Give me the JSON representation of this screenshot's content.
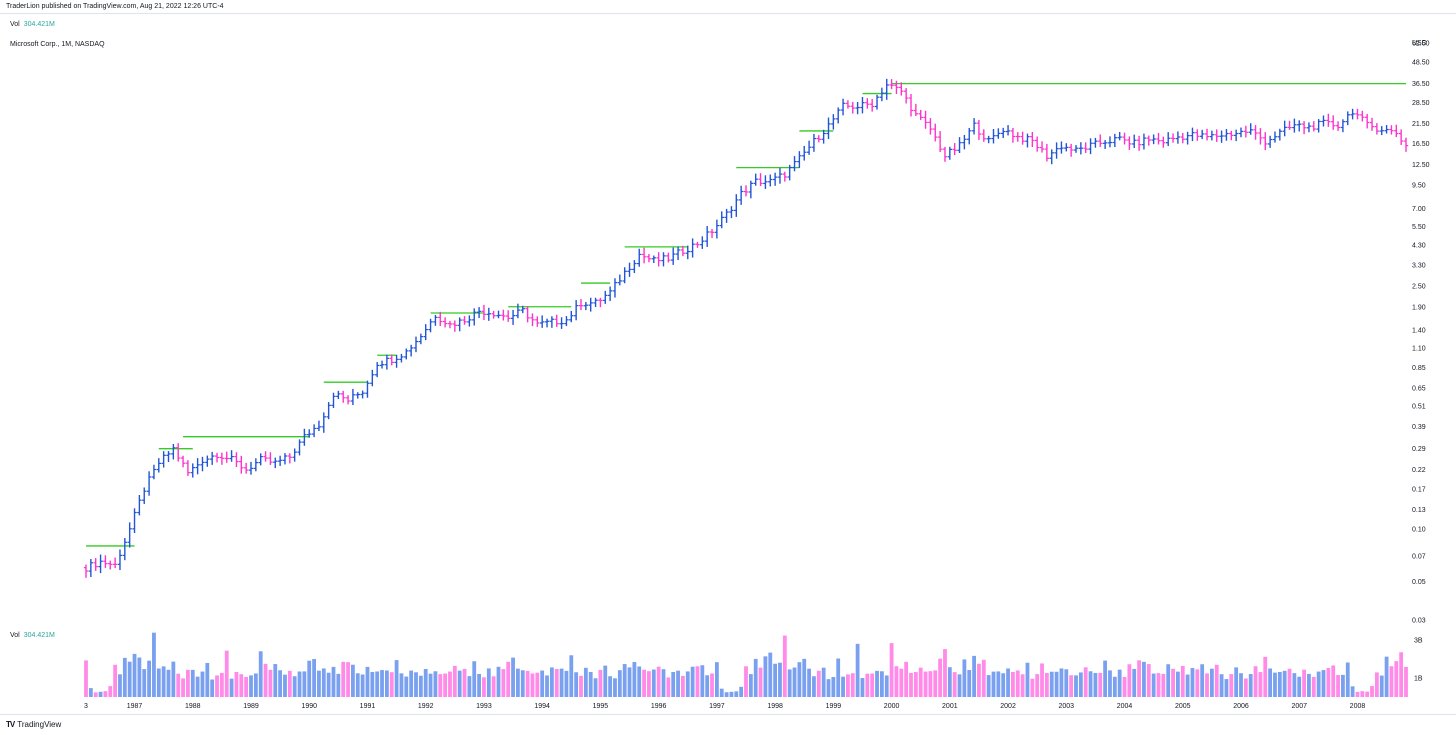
{
  "header": {
    "published_text": "TraderLion published on TradingView.com, Aug 21, 2022 12:26 UTC-4"
  },
  "legend": {
    "vol_label": "Vol",
    "vol_value": "304.421M",
    "series_title": "Microsoft Corp., 1M, NASDAQ"
  },
  "footer": {
    "brand": "TradingView",
    "logo_glyph": "TV"
  },
  "colors": {
    "up": "#2155d6",
    "down": "#ff33cc",
    "up_volume": "#7aa0f0",
    "down_volume": "#ff8ae8",
    "level_line": "#33cc22"
  },
  "chart_data": [
    {
      "type": "ohlc-bars",
      "title": "Microsoft Corp., 1M, NASDAQ",
      "currency": "USD",
      "scale": "log",
      "y_ticks": [
        "62.50",
        "48.50",
        "36.50",
        "28.50",
        "21.50",
        "16.50",
        "12.50",
        "9.50",
        "7.00",
        "5.50",
        "4.30",
        "3.30",
        "2.50",
        "1.90",
        "1.40",
        "1.10",
        "0.85",
        "0.65",
        "0.51",
        "0.39",
        "0.29",
        "0.22",
        "0.17",
        "0.13",
        "0.10",
        "0.07",
        "0.05",
        "0.03"
      ],
      "x_ticks": [
        "3",
        "1987",
        "1988",
        "1989",
        "1990",
        "1991",
        "1992",
        "1993",
        "1994",
        "1995",
        "1996",
        "1997",
        "1998",
        "1999",
        "2000",
        "2001",
        "2002",
        "2003",
        "2004",
        "2005",
        "2006",
        "2007",
        "2008"
      ],
      "price_path_quarterly": [
        {
          "d": "1986-03",
          "p": 0.06
        },
        {
          "d": "1986-06",
          "p": 0.065
        },
        {
          "d": "1986-09",
          "p": 0.062
        },
        {
          "d": "1986-12",
          "p": 0.1
        },
        {
          "d": "1987-03",
          "p": 0.17
        },
        {
          "d": "1987-06",
          "p": 0.24
        },
        {
          "d": "1987-09",
          "p": 0.29
        },
        {
          "d": "1987-12",
          "p": 0.21
        },
        {
          "d": "1988-03",
          "p": 0.25
        },
        {
          "d": "1988-06",
          "p": 0.27
        },
        {
          "d": "1988-09",
          "p": 0.25
        },
        {
          "d": "1988-12",
          "p": 0.22
        },
        {
          "d": "1989-03",
          "p": 0.25
        },
        {
          "d": "1989-06",
          "p": 0.24
        },
        {
          "d": "1989-09",
          "p": 0.26
        },
        {
          "d": "1989-12",
          "p": 0.34
        },
        {
          "d": "1990-03",
          "p": 0.4
        },
        {
          "d": "1990-06",
          "p": 0.6
        },
        {
          "d": "1990-09",
          "p": 0.55
        },
        {
          "d": "1990-12",
          "p": 0.62
        },
        {
          "d": "1991-03",
          "p": 0.9
        },
        {
          "d": "1991-06",
          "p": 0.95
        },
        {
          "d": "1991-09",
          "p": 1.05
        },
        {
          "d": "1991-12",
          "p": 1.3
        },
        {
          "d": "1992-03",
          "p": 1.7
        },
        {
          "d": "1992-06",
          "p": 1.5
        },
        {
          "d": "1992-09",
          "p": 1.6
        },
        {
          "d": "1992-12",
          "p": 1.8
        },
        {
          "d": "1993-03",
          "p": 1.75
        },
        {
          "d": "1993-06",
          "p": 1.65
        },
        {
          "d": "1993-09",
          "p": 1.8
        },
        {
          "d": "1993-12",
          "p": 1.5
        },
        {
          "d": "1994-03",
          "p": 1.55
        },
        {
          "d": "1994-06",
          "p": 1.6
        },
        {
          "d": "1994-09",
          "p": 2.0
        },
        {
          "d": "1994-12",
          "p": 2.0
        },
        {
          "d": "1995-03",
          "p": 2.3
        },
        {
          "d": "1995-06",
          "p": 3.0
        },
        {
          "d": "1995-09",
          "p": 3.8
        },
        {
          "d": "1995-12",
          "p": 3.5
        },
        {
          "d": "1996-03",
          "p": 3.6
        },
        {
          "d": "1996-06",
          "p": 4.0
        },
        {
          "d": "1996-09",
          "p": 4.4
        },
        {
          "d": "1996-12",
          "p": 5.2
        },
        {
          "d": "1997-03",
          "p": 6.5
        },
        {
          "d": "1997-06",
          "p": 8.5
        },
        {
          "d": "1997-09",
          "p": 10.0
        },
        {
          "d": "1997-12",
          "p": 10.0
        },
        {
          "d": "1998-03",
          "p": 11.0
        },
        {
          "d": "1998-06",
          "p": 13.5
        },
        {
          "d": "1998-09",
          "p": 17.0
        },
        {
          "d": "1998-12",
          "p": 21.0
        },
        {
          "d": "1999-03",
          "p": 27.0
        },
        {
          "d": "1999-06",
          "p": 27.0
        },
        {
          "d": "1999-09",
          "p": 28.0
        },
        {
          "d": "1999-12",
          "p": 36.0
        },
        {
          "d": "2000-03",
          "p": 33.0
        },
        {
          "d": "2000-06",
          "p": 24.0
        },
        {
          "d": "2000-09",
          "p": 20.0
        },
        {
          "d": "2000-12",
          "p": 14.0
        },
        {
          "d": "2001-03",
          "p": 16.0
        },
        {
          "d": "2001-06",
          "p": 21.0
        },
        {
          "d": "2001-09",
          "p": 17.0
        },
        {
          "d": "2001-12",
          "p": 20.0
        },
        {
          "d": "2002-03",
          "p": 18.0
        },
        {
          "d": "2002-06",
          "p": 17.0
        },
        {
          "d": "2002-09",
          "p": 14.0
        },
        {
          "d": "2002-12",
          "p": 16.0
        },
        {
          "d": "2003-03",
          "p": 15.0
        },
        {
          "d": "2003-06",
          "p": 16.0
        },
        {
          "d": "2003-09",
          "p": 17.0
        },
        {
          "d": "2003-12",
          "p": 17.5
        },
        {
          "d": "2004-03",
          "p": 16.5
        },
        {
          "d": "2004-06",
          "p": 17.5
        },
        {
          "d": "2004-09",
          "p": 17.0
        },
        {
          "d": "2004-12",
          "p": 18.0
        },
        {
          "d": "2005-03",
          "p": 18.5
        },
        {
          "d": "2005-06",
          "p": 18.0
        },
        {
          "d": "2005-09",
          "p": 18.5
        },
        {
          "d": "2005-12",
          "p": 19.0
        },
        {
          "d": "2006-03",
          "p": 19.5
        },
        {
          "d": "2006-06",
          "p": 17.0
        },
        {
          "d": "2006-09",
          "p": 19.0
        },
        {
          "d": "2006-12",
          "p": 21.0
        },
        {
          "d": "2007-03",
          "p": 20.5
        },
        {
          "d": "2007-06",
          "p": 21.5
        },
        {
          "d": "2007-09",
          "p": 21.0
        },
        {
          "d": "2007-12",
          "p": 25.5
        },
        {
          "d": "2008-03",
          "p": 21.0
        },
        {
          "d": "2008-06",
          "p": 20.0
        },
        {
          "d": "2008-09",
          "p": 19.0
        },
        {
          "d": "2008-11",
          "p": 16.0
        }
      ],
      "level_lines": [
        {
          "from": "1986-03",
          "to": "1987-01",
          "price": 0.08
        },
        {
          "from": "1987-06",
          "to": "1988-01",
          "price": 0.29
        },
        {
          "from": "1987-11",
          "to": "1990-01",
          "price": 0.34
        },
        {
          "from": "1990-04",
          "to": "1991-01",
          "price": 0.7
        },
        {
          "from": "1991-03",
          "to": "1991-07",
          "price": 1.0
        },
        {
          "from": "1992-02",
          "to": "1993-01",
          "price": 1.75
        },
        {
          "from": "1993-06",
          "to": "1994-07",
          "price": 1.9
        },
        {
          "from": "1994-09",
          "to": "1995-03",
          "price": 2.6
        },
        {
          "from": "1995-06",
          "to": "1996-07",
          "price": 4.2
        },
        {
          "from": "1997-05",
          "to": "1998-06",
          "price": 12.0
        },
        {
          "from": "1998-06",
          "to": "1999-01",
          "price": 19.5
        },
        {
          "from": "1999-07",
          "to": "2000-01",
          "price": 32.0
        },
        {
          "from": "2000-01",
          "to": "2008-11",
          "price": 36.5
        }
      ]
    },
    {
      "type": "bar",
      "title": "Vol",
      "value_label": "304.421M",
      "y_ticks": [
        "3B",
        "1B"
      ],
      "unit": "B",
      "volume_pattern": [
        1.8,
        0.5,
        0.25,
        0.3,
        0.3,
        0.5,
        1.5,
        1.2,
        1.9,
        1.8,
        2.0,
        2.1,
        1.6,
        1.8,
        3.1,
        1.6,
        1.6,
        1.6,
        2.1,
        1.3,
        1.1,
        1.3,
        1.4,
        1.1,
        1.2,
        1.8,
        1.0,
        1.2,
        1.4,
        2.7,
        1.1,
        1.2,
        1.4,
        1.2,
        1.3,
        1.2,
        2.6,
        1.8,
        1.5,
        1.8,
        1.4,
        1.3,
        1.6,
        1.2,
        1.3,
        1.5,
        1.8,
        2.2,
        1.6,
        1.4,
        1.3,
        1.8,
        1.3,
        2.1,
        1.9,
        1.7,
        1.3,
        1.2,
        1.4,
        1.2,
        1.5,
        1.4,
        1.3,
        1.2,
        1.8,
        1.1,
        1.2,
        1.6,
        1.3,
        1.2,
        1.3,
        1.4,
        1.5,
        1.2,
        1.1,
        1.4,
        1.6,
        1.3,
        1.3,
        1.2,
        1.8,
        1.4,
        1.2,
        1.5,
        1.1,
        1.6,
        1.3,
        1.9,
        1.8,
        1.6,
        1.3,
        1.2,
        1.4,
        1.5,
        1.3,
        1.2,
        1.7,
        1.3,
        1.6,
        1.4,
        2.0,
        1.2,
        1.3,
        1.5,
        1.2,
        1.1,
        1.3,
        1.5,
        1.2,
        1.0,
        1.3,
        1.6,
        1.4,
        2.1,
        1.5,
        1.3,
        1.2,
        1.4,
        1.6,
        1.3,
        1.2,
        1.5,
        1.3,
        1.1,
        1.2,
        1.4,
        1.6,
        1.8,
        1.2,
        1.1
      ]
    }
  ]
}
